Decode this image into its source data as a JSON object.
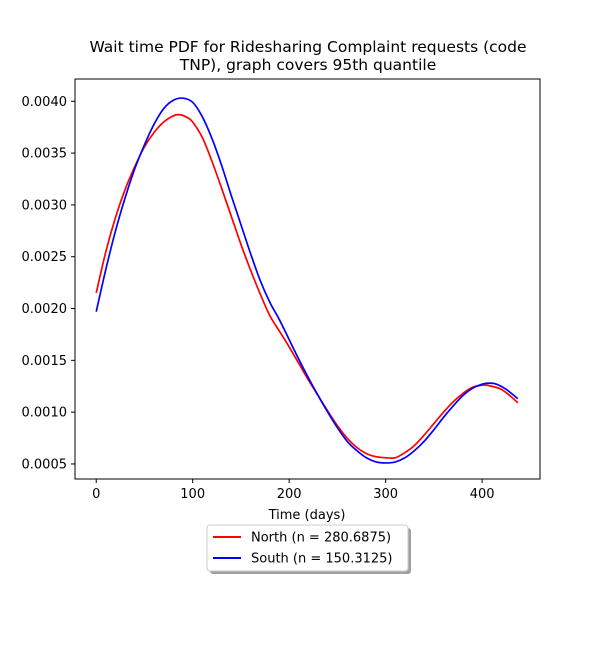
{
  "chart_data": {
    "type": "line",
    "title_line1": "Wait time PDF for Ridesharing Complaint  requests (code",
    "title_line2": "TNP), graph covers 95th quantile",
    "xlabel": "Time (days)",
    "ylabel": "",
    "xlim": [
      -22,
      460
    ],
    "ylim": [
      0.000355,
      0.004215
    ],
    "x_ticks": [
      0,
      100,
      200,
      300,
      400
    ],
    "y_ticks": [
      0.0005,
      0.001,
      0.0015,
      0.002,
      0.0025,
      0.003,
      0.0035,
      0.004
    ],
    "x_tick_labels": [
      "0",
      "100",
      "200",
      "300",
      "400"
    ],
    "y_tick_labels": [
      "0.0005",
      "0.0010",
      "0.0015",
      "0.0020",
      "0.0025",
      "0.0030",
      "0.0035",
      "0.0040"
    ],
    "grid": false,
    "legend_position": "below-center",
    "series": [
      {
        "name": "North (n = 280.6875)",
        "color": "#ff0000",
        "x": [
          0,
          10,
          20,
          30,
          40,
          50,
          60,
          70,
          80,
          87,
          95,
          100,
          110,
          120,
          130,
          140,
          150,
          160,
          170,
          180,
          190,
          200,
          210,
          220,
          230,
          240,
          250,
          260,
          270,
          280,
          290,
          300,
          310,
          320,
          330,
          340,
          350,
          360,
          370,
          380,
          390,
          400,
          405,
          410,
          420,
          430,
          437
        ],
        "y": [
          0.00215,
          0.00255,
          0.00288,
          0.00315,
          0.00337,
          0.00356,
          0.0037,
          0.0038,
          0.00386,
          0.00387,
          0.00384,
          0.0038,
          0.00365,
          0.00342,
          0.00316,
          0.00289,
          0.00262,
          0.00237,
          0.00214,
          0.00193,
          0.00178,
          0.00163,
          0.00147,
          0.00131,
          0.00116,
          0.00101,
          0.00087,
          0.00075,
          0.00066,
          0.0006,
          0.00057,
          0.00056,
          0.00056,
          0.00061,
          0.00068,
          0.00078,
          0.00089,
          0.001,
          0.0011,
          0.00118,
          0.00124,
          0.00126,
          0.00126,
          0.00125,
          0.00122,
          0.00115,
          0.00109
        ]
      },
      {
        "name": "South (n = 150.3125)",
        "color": "#0000ff",
        "x": [
          0,
          10,
          20,
          30,
          40,
          50,
          60,
          70,
          80,
          90,
          100,
          110,
          120,
          130,
          140,
          150,
          160,
          170,
          180,
          190,
          200,
          210,
          220,
          230,
          240,
          250,
          260,
          270,
          280,
          290,
          300,
          310,
          320,
          330,
          340,
          350,
          360,
          370,
          380,
          390,
          400,
          408,
          415,
          425,
          437
        ],
        "y": [
          0.00197,
          0.00238,
          0.00275,
          0.00307,
          0.00335,
          0.00358,
          0.00378,
          0.00393,
          0.00401,
          0.00403,
          0.00399,
          0.00385,
          0.00364,
          0.00338,
          0.00309,
          0.00281,
          0.00253,
          0.00227,
          0.00206,
          0.00189,
          0.0017,
          0.00151,
          0.00133,
          0.00116,
          0.001,
          0.00085,
          0.00072,
          0.00063,
          0.00056,
          0.00052,
          0.00051,
          0.00052,
          0.00056,
          0.00063,
          0.00072,
          0.00083,
          0.00095,
          0.00106,
          0.00116,
          0.00123,
          0.00127,
          0.00128,
          0.00127,
          0.00122,
          0.00113
        ]
      }
    ]
  }
}
